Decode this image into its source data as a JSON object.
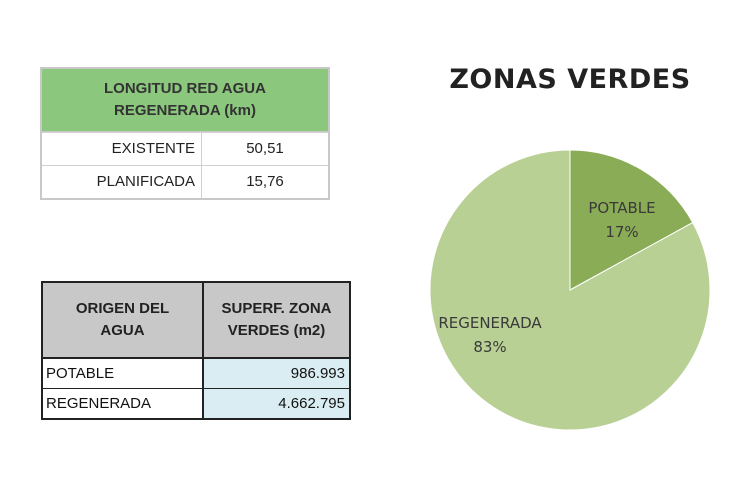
{
  "table_red": {
    "header": "LONGITUD RED AGUA\nREGENERADA (km)",
    "rows": [
      {
        "label": "EXISTENTE",
        "value": "50,51"
      },
      {
        "label": "PLANIFICADA",
        "value": "15,76"
      }
    ]
  },
  "table_origen": {
    "col1_header": "ORIGEN DEL\nAGUA",
    "col2_header": "SUPERF. ZONA\nVERDES (m2)",
    "rows": [
      {
        "label": "POTABLE",
        "value": "986.993"
      },
      {
        "label": "REGENERADA",
        "value": "4.662.795"
      }
    ]
  },
  "colors": {
    "header_green": "#8bc77c",
    "slice_potable": "#8aac57",
    "slice_regenerada": "#b9d095",
    "header_grey": "#c8c8c8",
    "value_cell": "#daedf3"
  },
  "chart_data": {
    "type": "pie",
    "title": "ZONAS VERDES",
    "series": [
      {
        "name": "POTABLE",
        "value": 17,
        "label": "17%"
      },
      {
        "name": "REGENERADA",
        "value": 83,
        "label": "83%"
      }
    ],
    "start": "12 o'clock, clockwise"
  }
}
